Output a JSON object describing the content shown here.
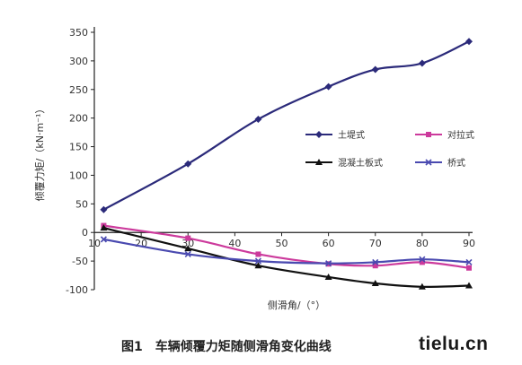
{
  "chart_data": {
    "type": "line",
    "title": "",
    "xlabel": "侧滑角/（°）",
    "ylabel": "倾覆力矩/（kN·m⁻¹）",
    "xlim": [
      10,
      90
    ],
    "ylim": [
      -100,
      350
    ],
    "x_ticks": [
      10,
      20,
      30,
      40,
      50,
      60,
      70,
      80,
      90
    ],
    "y_ticks": [
      -100,
      -50,
      0,
      50,
      100,
      150,
      200,
      250,
      300,
      350
    ],
    "grid": false,
    "legend_position": "right",
    "series": [
      {
        "name": "土堤式",
        "color": "#2b2a7a",
        "marker": "diamond",
        "points": [
          [
            12,
            40
          ],
          [
            30,
            120
          ],
          [
            45,
            198
          ],
          [
            60,
            255
          ],
          [
            70,
            285
          ],
          [
            80,
            296
          ],
          [
            90,
            334
          ]
        ]
      },
      {
        "name": "对拉式",
        "color": "#cc3a9c",
        "marker": "square",
        "points": [
          [
            12,
            12
          ],
          [
            30,
            -10
          ],
          [
            45,
            -38
          ],
          [
            60,
            -55
          ],
          [
            70,
            -58
          ],
          [
            80,
            -52
          ],
          [
            90,
            -62
          ]
        ]
      },
      {
        "name": "混凝土板式",
        "color": "#111111",
        "marker": "triangle",
        "points": [
          [
            12,
            8
          ],
          [
            30,
            -28
          ],
          [
            45,
            -58
          ],
          [
            60,
            -78
          ],
          [
            70,
            -89
          ],
          [
            80,
            -95
          ],
          [
            90,
            -93
          ]
        ]
      },
      {
        "name": "桥式",
        "color": "#4a4ab0",
        "marker": "cross",
        "points": [
          [
            12,
            -12
          ],
          [
            30,
            -38
          ],
          [
            45,
            -50
          ],
          [
            60,
            -54
          ],
          [
            70,
            -52
          ],
          [
            80,
            -47
          ],
          [
            90,
            -52
          ]
        ]
      }
    ]
  },
  "caption": {
    "number": "图1",
    "text": "车辆倾覆力矩随侧滑角变化曲线"
  },
  "watermark": "tielu.cn"
}
